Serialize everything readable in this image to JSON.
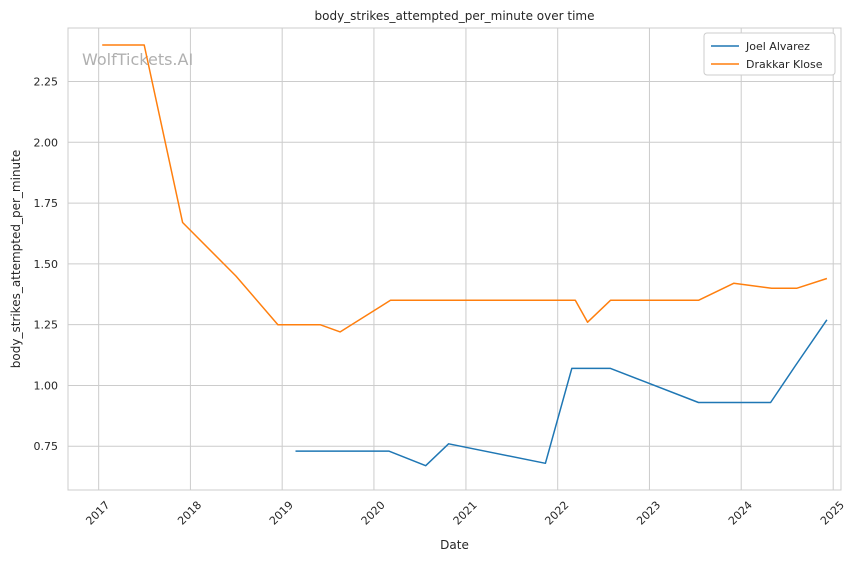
{
  "chart_data": {
    "type": "line",
    "title": "body_strikes_attempted_per_minute over time",
    "xlabel": "Date",
    "ylabel": "body_strikes_attempted_per_minute",
    "watermark": "WolfTickets.AI",
    "x_ticks": [
      "2017",
      "2018",
      "2019",
      "2020",
      "2021",
      "2022",
      "2023",
      "2024",
      "2025"
    ],
    "y_ticks": [
      "0.75",
      "1.00",
      "1.25",
      "1.50",
      "1.75",
      "2.00",
      "2.25"
    ],
    "xlim": [
      "2016-09-01",
      "2025-02-01"
    ],
    "ylim": [
      0.57,
      2.47
    ],
    "grid": true,
    "legend_position": "top-right",
    "series": [
      {
        "name": "Joel Alvarez",
        "color": "#1f77b4",
        "points": [
          [
            "2019-02-23",
            0.73
          ],
          [
            "2020-02-29",
            0.73
          ],
          [
            "2020-07-25",
            0.67
          ],
          [
            "2020-10-24",
            0.76
          ],
          [
            "2021-11-13",
            0.68
          ],
          [
            "2022-02-26",
            1.07
          ],
          [
            "2022-07-30",
            1.07
          ],
          [
            "2023-07-15",
            0.93
          ],
          [
            "2024-04-27",
            0.93
          ],
          [
            "2024-08-03",
            1.08
          ],
          [
            "2024-12-07",
            1.27
          ]
        ]
      },
      {
        "name": "Drakkar Klose",
        "color": "#ff7f0e",
        "points": [
          [
            "2017-01-15",
            2.4
          ],
          [
            "2017-07-01",
            2.4
          ],
          [
            "2017-12-01",
            1.67
          ],
          [
            "2018-07-01",
            1.45
          ],
          [
            "2018-12-15",
            1.25
          ],
          [
            "2019-06-01",
            1.25
          ],
          [
            "2019-08-20",
            1.22
          ],
          [
            "2020-03-07",
            1.35
          ],
          [
            "2022-03-12",
            1.35
          ],
          [
            "2022-04-30",
            1.26
          ],
          [
            "2022-07-30",
            1.35
          ],
          [
            "2023-07-15",
            1.35
          ],
          [
            "2023-12-02",
            1.42
          ],
          [
            "2024-05-01",
            1.4
          ],
          [
            "2024-08-10",
            1.4
          ],
          [
            "2024-12-07",
            1.44
          ]
        ]
      }
    ]
  }
}
